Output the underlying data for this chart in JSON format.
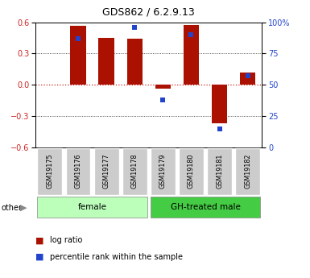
{
  "title": "GDS862 / 6.2.9.13",
  "samples": [
    "GSM19175",
    "GSM19176",
    "GSM19177",
    "GSM19178",
    "GSM19179",
    "GSM19180",
    "GSM19181",
    "GSM19182"
  ],
  "log_ratio": [
    0.0,
    0.565,
    0.45,
    0.44,
    -0.04,
    0.575,
    -0.37,
    0.12
  ],
  "percentile_rank": [
    null,
    87,
    null,
    96,
    38,
    90,
    15,
    57
  ],
  "groups": [
    {
      "label": "female",
      "start": 0,
      "end": 3,
      "color": "#bbffbb"
    },
    {
      "label": "GH-treated male",
      "start": 4,
      "end": 7,
      "color": "#44cc44"
    }
  ],
  "ylim_left": [
    -0.6,
    0.6
  ],
  "ylim_right": [
    0,
    100
  ],
  "yticks_left": [
    -0.6,
    -0.3,
    0.0,
    0.3,
    0.6
  ],
  "yticks_right": [
    0,
    25,
    50,
    75,
    100
  ],
  "yticklabels_right": [
    "0",
    "25",
    "50",
    "75",
    "100%"
  ],
  "bar_color": "#aa1100",
  "dot_color": "#2244cc",
  "zero_line_color": "#cc2222",
  "grid_color": "#222222",
  "bg_color": "#ffffff",
  "plot_bg_color": "#ffffff",
  "tick_label_color_left": "#cc2222",
  "tick_label_color_right": "#2244cc",
  "label_box_color": "#cccccc",
  "other_label": "other",
  "bar_width": 0.55
}
